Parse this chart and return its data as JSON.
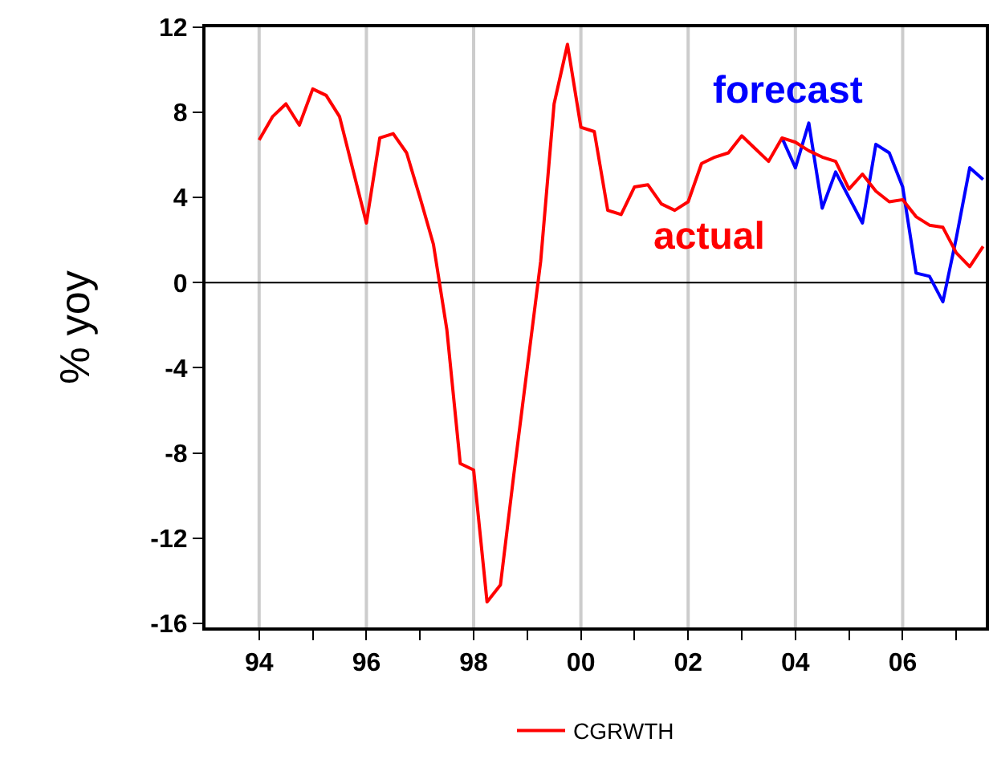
{
  "chart_data": {
    "type": "line",
    "ylabel": "% yoy",
    "x": [
      1994,
      1994.25,
      1994.5,
      1994.75,
      1995,
      1995.25,
      1995.5,
      1995.75,
      1996,
      1996.25,
      1996.5,
      1996.75,
      1997,
      1997.25,
      1997.5,
      1997.75,
      1998,
      1998.25,
      1998.5,
      1998.75,
      1999,
      1999.25,
      1999.5,
      1999.75,
      2000,
      2000.25,
      2000.5,
      2000.75,
      2001,
      2001.25,
      2001.5,
      2001.75,
      2002,
      2002.25,
      2002.5,
      2002.75,
      2003,
      2003.25,
      2003.5,
      2003.75,
      2004,
      2004.25,
      2004.5,
      2004.75,
      2005,
      2005.25,
      2005.5,
      2005.75,
      2006,
      2006.25,
      2006.5,
      2006.75,
      2007,
      2007.25,
      2007.5
    ],
    "series": [
      {
        "name": "CGRWTH",
        "color": "#ff0000",
        "values": [
          6.7,
          7.8,
          8.4,
          7.4,
          9.1,
          8.8,
          7.8,
          5.3,
          2.8,
          6.8,
          7.0,
          6.1,
          4.0,
          1.8,
          -2.2,
          -8.5,
          -8.8,
          -15.0,
          -14.2,
          -9.0,
          -4.0,
          1.0,
          8.4,
          11.2,
          7.3,
          7.1,
          3.4,
          3.2,
          4.5,
          4.6,
          3.7,
          3.4,
          3.8,
          5.6,
          5.9,
          6.1,
          6.9,
          6.3,
          5.7,
          6.8,
          6.6,
          6.2,
          5.9,
          5.7,
          4.4,
          5.1,
          4.3,
          3.8,
          3.9,
          3.1,
          2.7,
          2.6,
          1.4,
          0.75,
          1.7
        ]
      },
      {
        "color": "#0000ff",
        "values": [
          null,
          null,
          null,
          null,
          null,
          null,
          null,
          null,
          null,
          null,
          null,
          null,
          null,
          null,
          null,
          null,
          null,
          null,
          null,
          null,
          null,
          null,
          null,
          null,
          null,
          null,
          null,
          null,
          null,
          null,
          null,
          null,
          null,
          null,
          null,
          null,
          null,
          null,
          null,
          6.8,
          5.4,
          7.5,
          3.5,
          5.2,
          4.0,
          2.8,
          6.5,
          6.1,
          4.5,
          0.45,
          0.3,
          -0.9,
          2.1,
          5.4,
          4.85
        ]
      }
    ],
    "xlim": [
      1993.0,
      2007.55
    ],
    "xticks": [
      {
        "value": 1994,
        "label": "94"
      },
      {
        "value": 1995,
        "label": null
      },
      {
        "value": 1996,
        "label": "96"
      },
      {
        "value": 1997,
        "label": null
      },
      {
        "value": 1998,
        "label": "98"
      },
      {
        "value": 1999,
        "label": null
      },
      {
        "value": 2000,
        "label": "00"
      },
      {
        "value": 2001,
        "label": null
      },
      {
        "value": 2002,
        "label": "02"
      },
      {
        "value": 2003,
        "label": null
      },
      {
        "value": 2004,
        "label": "04"
      },
      {
        "value": 2005,
        "label": null
      },
      {
        "value": 2006,
        "label": "06"
      },
      {
        "value": 2007,
        "label": null
      }
    ],
    "ylim": [
      -16.2,
      12
    ],
    "yticks": [
      -16,
      -12,
      -8,
      -4,
      0,
      4,
      8,
      12
    ],
    "grid": "x",
    "ref_lines": [
      {
        "axis": "y",
        "value": 0,
        "color": "#000000"
      }
    ],
    "annotations": [
      "actual",
      "forecast"
    ],
    "legend": "bottom",
    "line_style": "solid"
  }
}
